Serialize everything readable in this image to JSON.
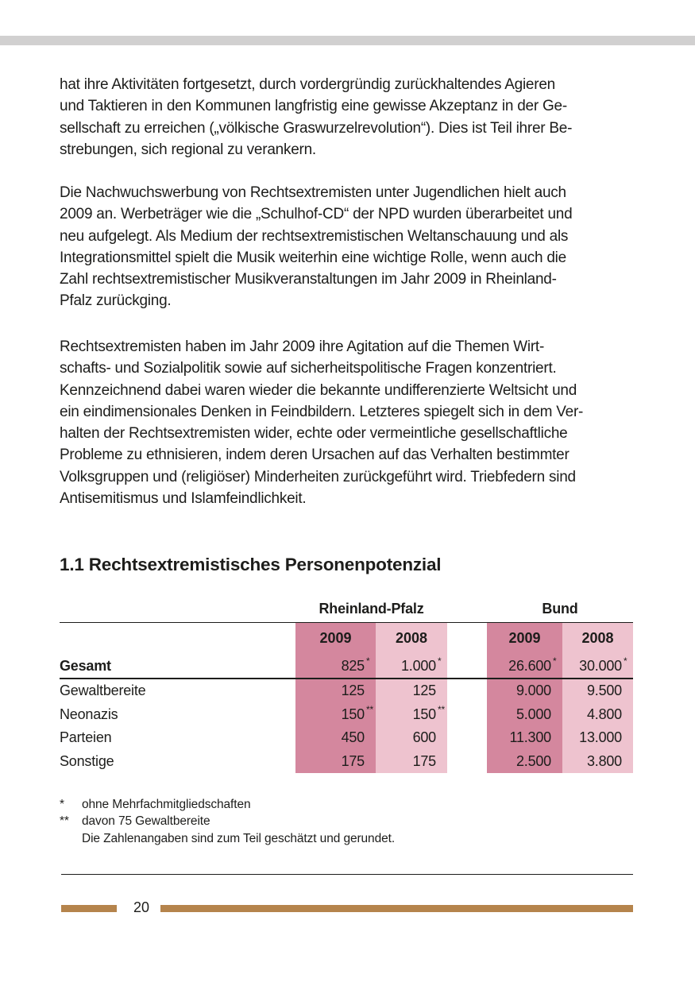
{
  "colors": {
    "pink-dark": "#d4879e",
    "pink-light": "#eec3cf",
    "brown": "#b5844c",
    "top-bar-gray": "#d1d0d0",
    "text": "#1d1d1b"
  },
  "paragraphs": [
    {
      "lines": [
        "hat ihre Aktivitäten fortgesetzt, durch vordergründig zurückhaltendes Agieren",
        "und Taktieren in den Kommunen langfristig eine gewisse Akzeptanz in der Ge-",
        "sellschaft zu erreichen („völkische Graswurzelrevolution“). Dies ist Teil ihrer Be-",
        "strebungen, sich regional zu verankern."
      ]
    },
    {
      "lines": [
        "Die Nachwuchswerbung von Rechtsextremisten unter Jugendlichen hielt auch",
        "2009 an. Werbeträger wie die „Schulhof-CD“ der NPD wurden überarbeitet und",
        "neu aufgelegt. Als Medium der rechtsextremistischen Weltanschauung und als",
        "Integrationsmittel spielt die Musik weiterhin eine wichtige Rolle, wenn auch die",
        "Zahl rechtsextremistischer Musikveranstaltungen im Jahr 2009 in Rheinland-",
        "Pfalz zurückging."
      ]
    },
    {
      "lines": [
        "Rechtsextremisten haben im Jahr 2009 ihre Agitation auf die Themen Wirt-",
        "schafts- und Sozialpolitik sowie auf sicherheitspolitische Fragen konzentriert.",
        "Kennzeichnend dabei waren wieder die bekannte undifferenzierte Weltsicht und",
        "ein eindimensionales Denken in Feindbildern. Letzteres spiegelt sich in dem Ver-",
        "halten der Rechtsextremisten wider, echte oder vermeintliche gesellschaftliche",
        "Probleme zu ethnisieren, indem deren Ursachen auf das Verhalten bestimmter",
        "Volksgruppen und (religiöser) Minderheiten zurückgeführt wird. Triebfedern sind",
        "Antisemitismus und Islamfeindlichkeit."
      ]
    }
  ],
  "section": {
    "heading": "1.1 Rechtsextremistisches Personenpotenzial"
  },
  "table": {
    "group_headers": [
      "Rheinland-Pfalz",
      "Bund"
    ],
    "year_headers": [
      "2009",
      "2008",
      "2009",
      "2008"
    ],
    "rows": [
      {
        "label": "Gesamt",
        "values": [
          "825",
          "1.000",
          "26.600",
          "30.000"
        ],
        "sups": [
          "*",
          "*",
          "*",
          "*"
        ]
      },
      {
        "label": "Gewaltbereite",
        "values": [
          "125",
          "125",
          "9.000",
          "9.500"
        ],
        "sups": [
          "",
          "",
          "",
          ""
        ]
      },
      {
        "label": "Neonazis",
        "values": [
          "150",
          "150",
          "5.000",
          "4.800"
        ],
        "sups": [
          "**",
          "**",
          "",
          ""
        ]
      },
      {
        "label": "Parteien",
        "values": [
          "450",
          "600",
          "11.300",
          "13.000"
        ],
        "sups": [
          "",
          "",
          "",
          ""
        ]
      },
      {
        "label": "Sonstige",
        "values": [
          "175",
          "175",
          "2.500",
          "3.800"
        ],
        "sups": [
          "",
          "",
          "",
          ""
        ]
      }
    ]
  },
  "footnotes": [
    {
      "marker": "*",
      "text": "ohne Mehrfachmitgliedschaften"
    },
    {
      "marker": "**",
      "text": "davon 75 Gewaltbereite"
    },
    {
      "marker": "",
      "text": "Die Zahlenangaben sind zum Teil geschätzt und gerundet."
    }
  ],
  "footer": {
    "page_number": "20"
  }
}
